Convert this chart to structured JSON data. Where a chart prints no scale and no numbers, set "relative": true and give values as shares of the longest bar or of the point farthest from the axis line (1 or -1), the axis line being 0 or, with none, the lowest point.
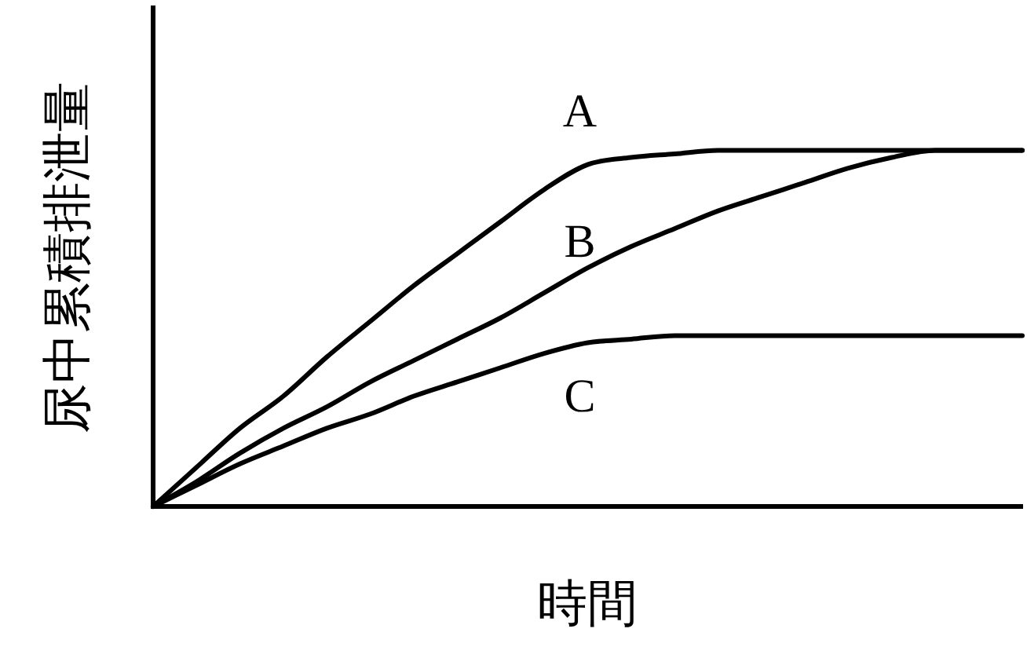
{
  "chart_data": {
    "type": "line",
    "xlabel": "時間",
    "ylabel": "尿中累積排泄量",
    "categories": [
      null,
      null,
      null,
      null,
      null,
      null,
      null,
      null,
      null,
      null,
      null,
      null,
      null,
      null,
      null,
      null,
      null,
      null,
      null,
      null,
      null
    ],
    "relative": true,
    "grid": false,
    "legend": false,
    "marker": "none",
    "line_style": "solid",
    "series": [
      {
        "name": "A",
        "color": "#000000",
        "values": [
          0,
          0.11,
          0.22,
          0.31,
          0.42,
          0.52,
          0.62,
          0.71,
          0.8,
          0.89,
          0.96,
          0.98,
          0.99,
          1,
          1,
          1,
          1,
          1,
          1,
          1,
          1
        ]
      },
      {
        "name": "B",
        "color": "#000000",
        "values": [
          0,
          0.07,
          0.15,
          0.22,
          0.28,
          0.35,
          0.41,
          0.47,
          0.53,
          0.6,
          0.67,
          0.73,
          0.78,
          0.83,
          0.87,
          0.91,
          0.95,
          0.98,
          1,
          1,
          1
        ]
      },
      {
        "name": "C",
        "color": "#000000",
        "values": [
          0,
          0.06,
          0.12,
          0.17,
          0.22,
          0.26,
          0.31,
          0.35,
          0.39,
          0.43,
          0.46,
          0.47,
          0.48,
          0.48,
          0.48,
          0.48,
          0.48,
          0.48,
          0.48,
          0.48,
          0.48
        ]
      }
    ]
  }
}
